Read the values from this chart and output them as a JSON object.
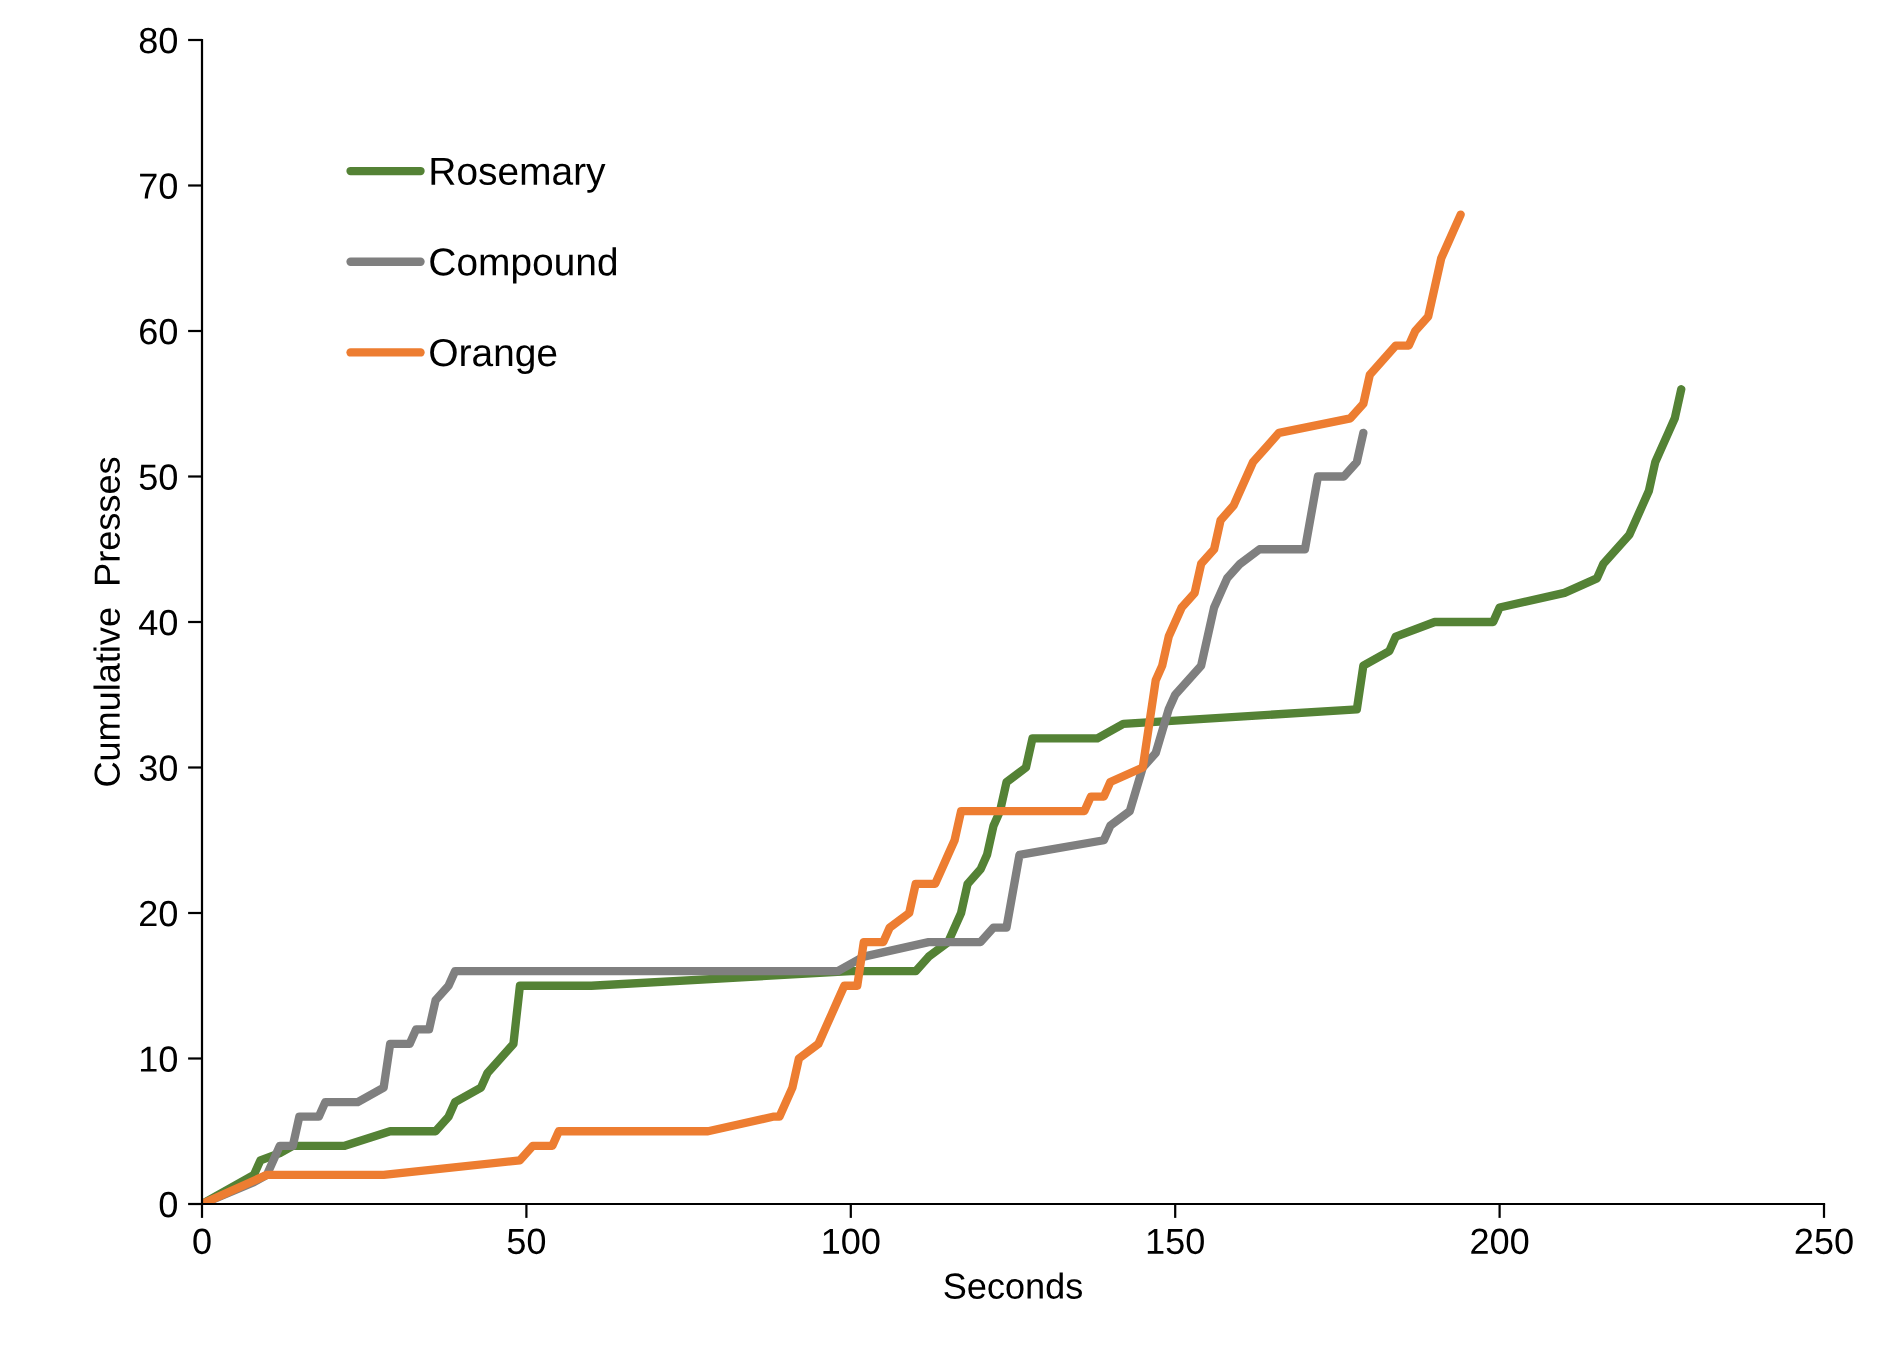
{
  "chart_data": {
    "type": "line",
    "xlabel": "Seconds",
    "ylabel": "Cumulative  Presses",
    "xlim": [
      0,
      250
    ],
    "xticks": [
      0,
      50,
      100,
      150,
      200,
      250
    ],
    "ylim": [
      0,
      80
    ],
    "yticks": [
      0,
      10,
      20,
      30,
      40,
      50,
      60,
      70,
      80
    ],
    "grid": false,
    "legend": "top left",
    "marker": "none",
    "line_style": "solid",
    "series": [
      {
        "name": "Rosemary",
        "color": "#548235",
        "x": [
          0,
          8,
          9,
          12,
          14,
          22,
          29,
          36,
          38,
          39,
          43,
          44,
          46,
          48,
          49,
          60,
          100,
          110,
          112,
          115,
          117,
          118,
          120,
          121,
          122,
          123,
          124,
          127,
          128,
          138,
          142,
          178,
          179,
          183,
          184,
          190,
          199,
          200,
          210,
          215,
          216,
          220,
          222,
          223,
          224,
          225,
          226,
          227,
          228
        ],
        "values": [
          0,
          2,
          3,
          3.5,
          4,
          4,
          5,
          5,
          6,
          7,
          8,
          9,
          10,
          11,
          15,
          15,
          16,
          16,
          17,
          18,
          20,
          22,
          23,
          24,
          26,
          27,
          29,
          30,
          32,
          32,
          33,
          34,
          37,
          38,
          39,
          40,
          40,
          41,
          42,
          43,
          44,
          46,
          48,
          49,
          51,
          52,
          53,
          54,
          56
        ]
      },
      {
        "name": "Compound",
        "color": "#7f7f7f",
        "x": [
          0,
          8,
          10,
          12,
          14,
          15,
          18,
          19,
          24,
          28,
          29,
          32,
          33,
          35,
          36,
          38,
          39,
          98,
          102,
          112,
          120,
          122,
          124,
          126,
          139,
          140,
          143,
          145,
          147,
          149,
          150,
          152,
          154,
          156,
          157,
          158,
          160,
          163,
          170,
          172,
          176,
          178,
          179
        ],
        "values": [
          0,
          1.5,
          2,
          4,
          4,
          6,
          6,
          7,
          7,
          8,
          11,
          11,
          12,
          12,
          14,
          15,
          16,
          16,
          17,
          18,
          18,
          19,
          19,
          24,
          25,
          26,
          27,
          30,
          31,
          34,
          35,
          36,
          37,
          41,
          42,
          43,
          44,
          45,
          45,
          50,
          50,
          51,
          53
        ]
      },
      {
        "name": "Orange",
        "color": "#ed7d31",
        "x": [
          0,
          10,
          28,
          49,
          51,
          54,
          55,
          78,
          88,
          89,
          91,
          92,
          95,
          96,
          97,
          98,
          99,
          101,
          102,
          105,
          106,
          109,
          110,
          113,
          114,
          115,
          116,
          117,
          136,
          137,
          139,
          140,
          145,
          146,
          147,
          148,
          149,
          151,
          153,
          154,
          156,
          157,
          159,
          160,
          162,
          164,
          166,
          177,
          179,
          180,
          184,
          186,
          187,
          189,
          190,
          191,
          192,
          193,
          194
        ],
        "values": [
          0,
          2,
          2,
          3,
          4,
          4,
          5,
          5,
          6,
          6,
          8,
          10,
          11,
          12,
          13,
          14,
          15,
          15,
          18,
          18,
          19,
          20,
          22,
          22,
          23,
          24,
          25,
          27,
          27,
          28,
          28,
          29,
          30,
          33,
          36,
          37,
          39,
          41,
          42,
          44,
          45,
          47,
          48,
          49,
          51,
          52,
          53,
          54,
          55,
          57,
          59,
          59,
          60,
          61,
          63,
          65,
          66,
          67,
          68
        ]
      }
    ]
  }
}
